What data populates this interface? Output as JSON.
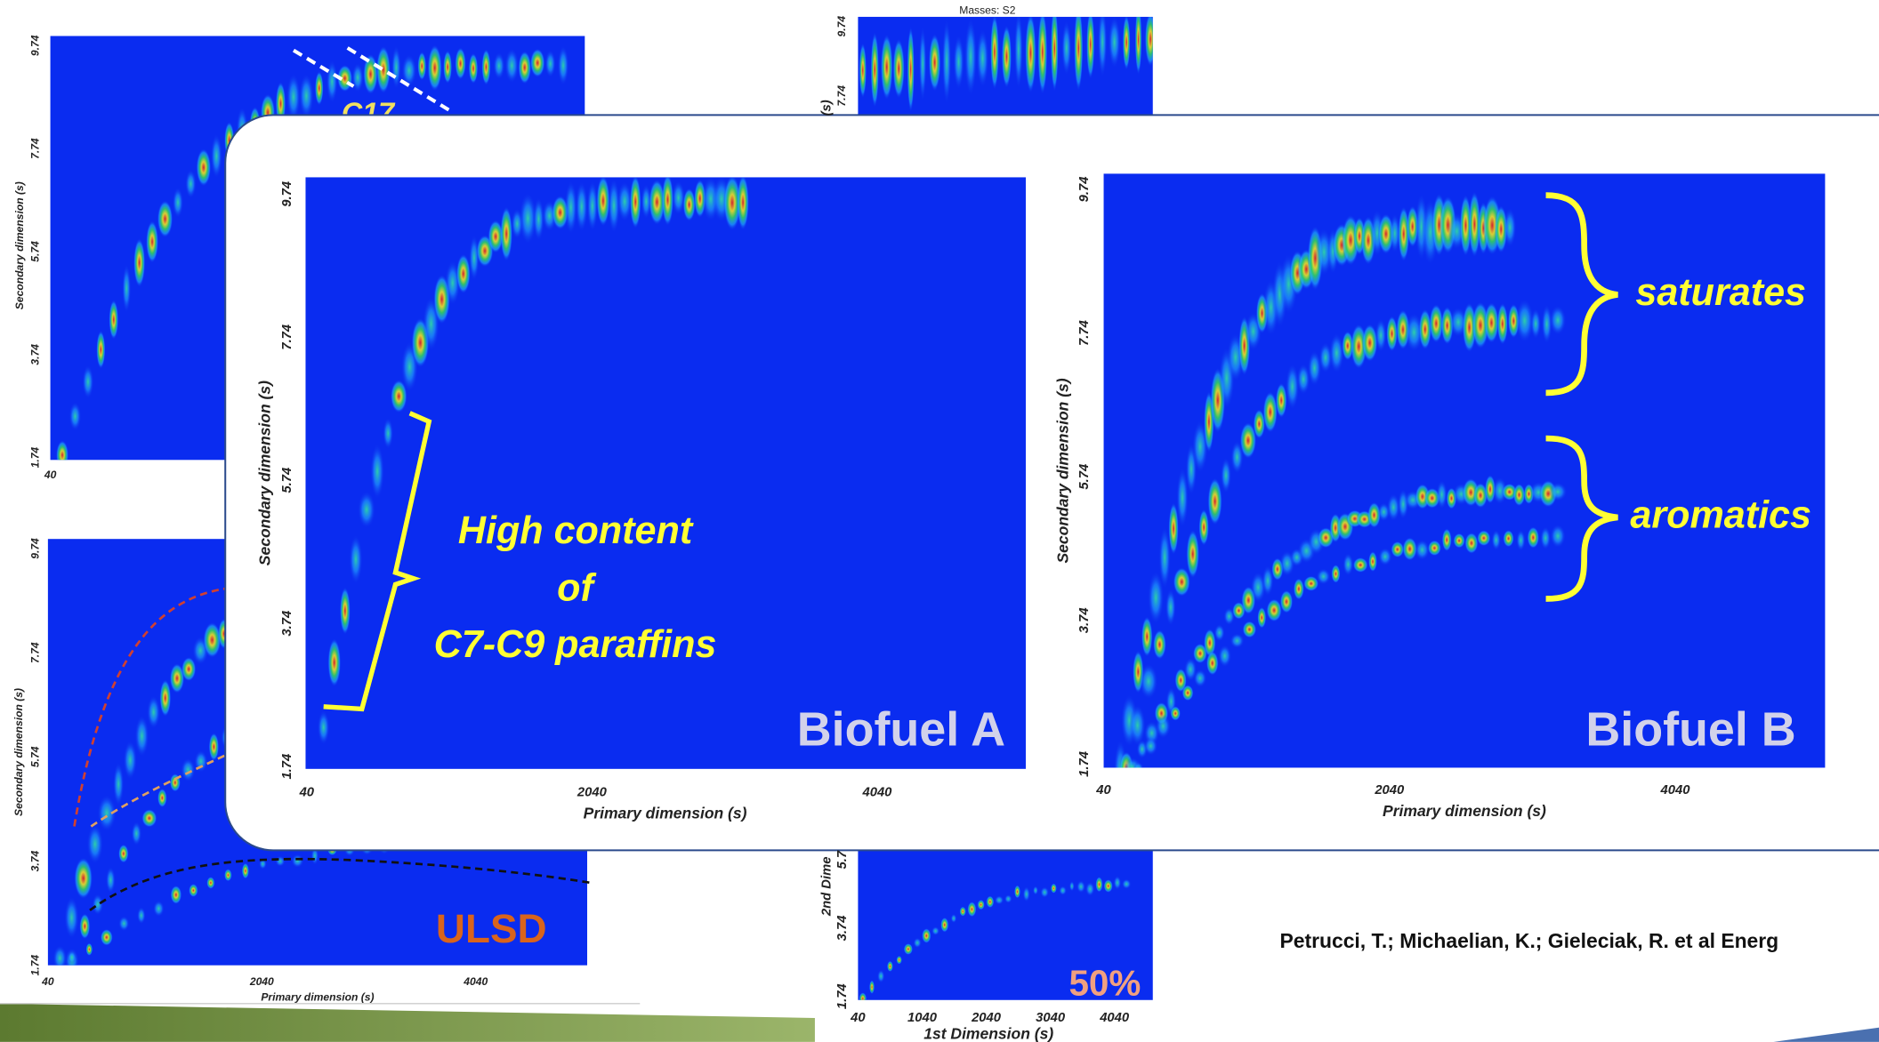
{
  "top_left": {
    "y_ticks": [
      "9.74",
      "7.74",
      "5.74",
      "3.74",
      "1.74"
    ],
    "y_label": "Secondary dimension (s)",
    "x_ticks": [
      "40"
    ],
    "annotation": "C17"
  },
  "top_middle": {
    "title": "Masses: S2",
    "y_ticks": [
      "9.74",
      "7.74"
    ],
    "y_label": "(s)"
  },
  "bottom_left": {
    "y_ticks": [
      "9.74",
      "7.74",
      "5.74",
      "3.74",
      "1.74"
    ],
    "y_label": "Secondary dimension (s)",
    "x_ticks": [
      "40",
      "2040",
      "4040"
    ],
    "x_label": "Primary dimension (s)",
    "label": "ULSD"
  },
  "bottom_middle": {
    "y_label": "2nd Dime",
    "y_ticks": [
      "5.7",
      "3.74",
      "1.74"
    ],
    "x_ticks": [
      "40",
      "1040",
      "2040",
      "3040",
      "4040"
    ],
    "x_label": "1st Dimension (s)",
    "label": "50%"
  },
  "citation": "Petrucci, T.; Michaelian, K.; Gieleciak, R. et al Energ",
  "card": {
    "panels": [
      {
        "y_ticks": [
          "9.74",
          "7.74",
          "5.74",
          "3.74",
          "1.74"
        ],
        "y_label": "Secondary dimension (s)",
        "x_ticks": [
          "40",
          "2040",
          "4040"
        ],
        "x_label": "Primary dimension (s)",
        "annotations": [
          "High content",
          "of",
          "C7-C9 paraffins"
        ],
        "label": "Biofuel A"
      },
      {
        "y_ticks": [
          "9.74",
          "7.74",
          "5.74",
          "3.74",
          "1.74"
        ],
        "y_label": "Secondary dimension (s)",
        "x_ticks": [
          "40",
          "2040",
          "4040"
        ],
        "x_label": "Primary dimension (s)",
        "annotations": [
          "saturates",
          "aromatics"
        ],
        "label": "Biofuel B"
      }
    ]
  }
}
